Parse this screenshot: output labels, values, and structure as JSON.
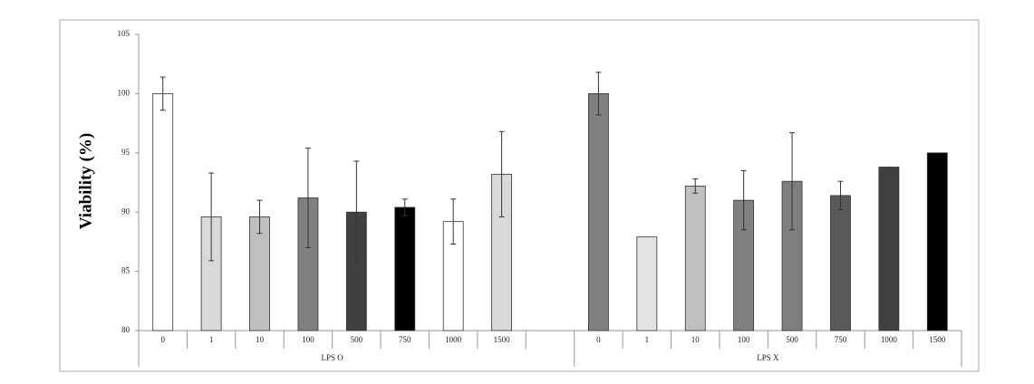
{
  "chart_data": {
    "type": "bar",
    "y_label": "Viability (%)",
    "ylim": [
      80,
      105
    ],
    "yticks": [
      80,
      85,
      90,
      95,
      100,
      105
    ],
    "groups": [
      {
        "label": "LPS O",
        "categories": [
          "0",
          "1",
          "10",
          "100",
          "500",
          "750",
          "1000",
          "1500"
        ],
        "values": [
          100,
          89.6,
          89.6,
          91.2,
          90.0,
          90.4,
          89.2,
          93.2
        ],
        "errors": [
          1.4,
          3.7,
          1.4,
          4.2,
          4.3,
          0.7,
          1.9,
          3.6
        ],
        "colors": [
          "#ffffff",
          "#d9d9d9",
          "#bfbfbf",
          "#808080",
          "#404040",
          "#000000",
          "#ffffff",
          "#d9d9d9"
        ]
      },
      {
        "label": "LPS X",
        "categories": [
          "0",
          "1",
          "10",
          "100",
          "500",
          "750",
          "1000",
          "1500"
        ],
        "values": [
          100,
          87.9,
          92.2,
          91.0,
          92.6,
          91.4,
          93.8,
          95.0
        ],
        "errors": [
          1.8,
          null,
          0.6,
          2.5,
          4.1,
          1.2,
          null,
          null
        ],
        "colors": [
          "#808080",
          "#e3e3e3",
          "#c0c0c0",
          "#808080",
          "#7f7f7f",
          "#595959",
          "#404040",
          "#000000"
        ]
      }
    ]
  }
}
